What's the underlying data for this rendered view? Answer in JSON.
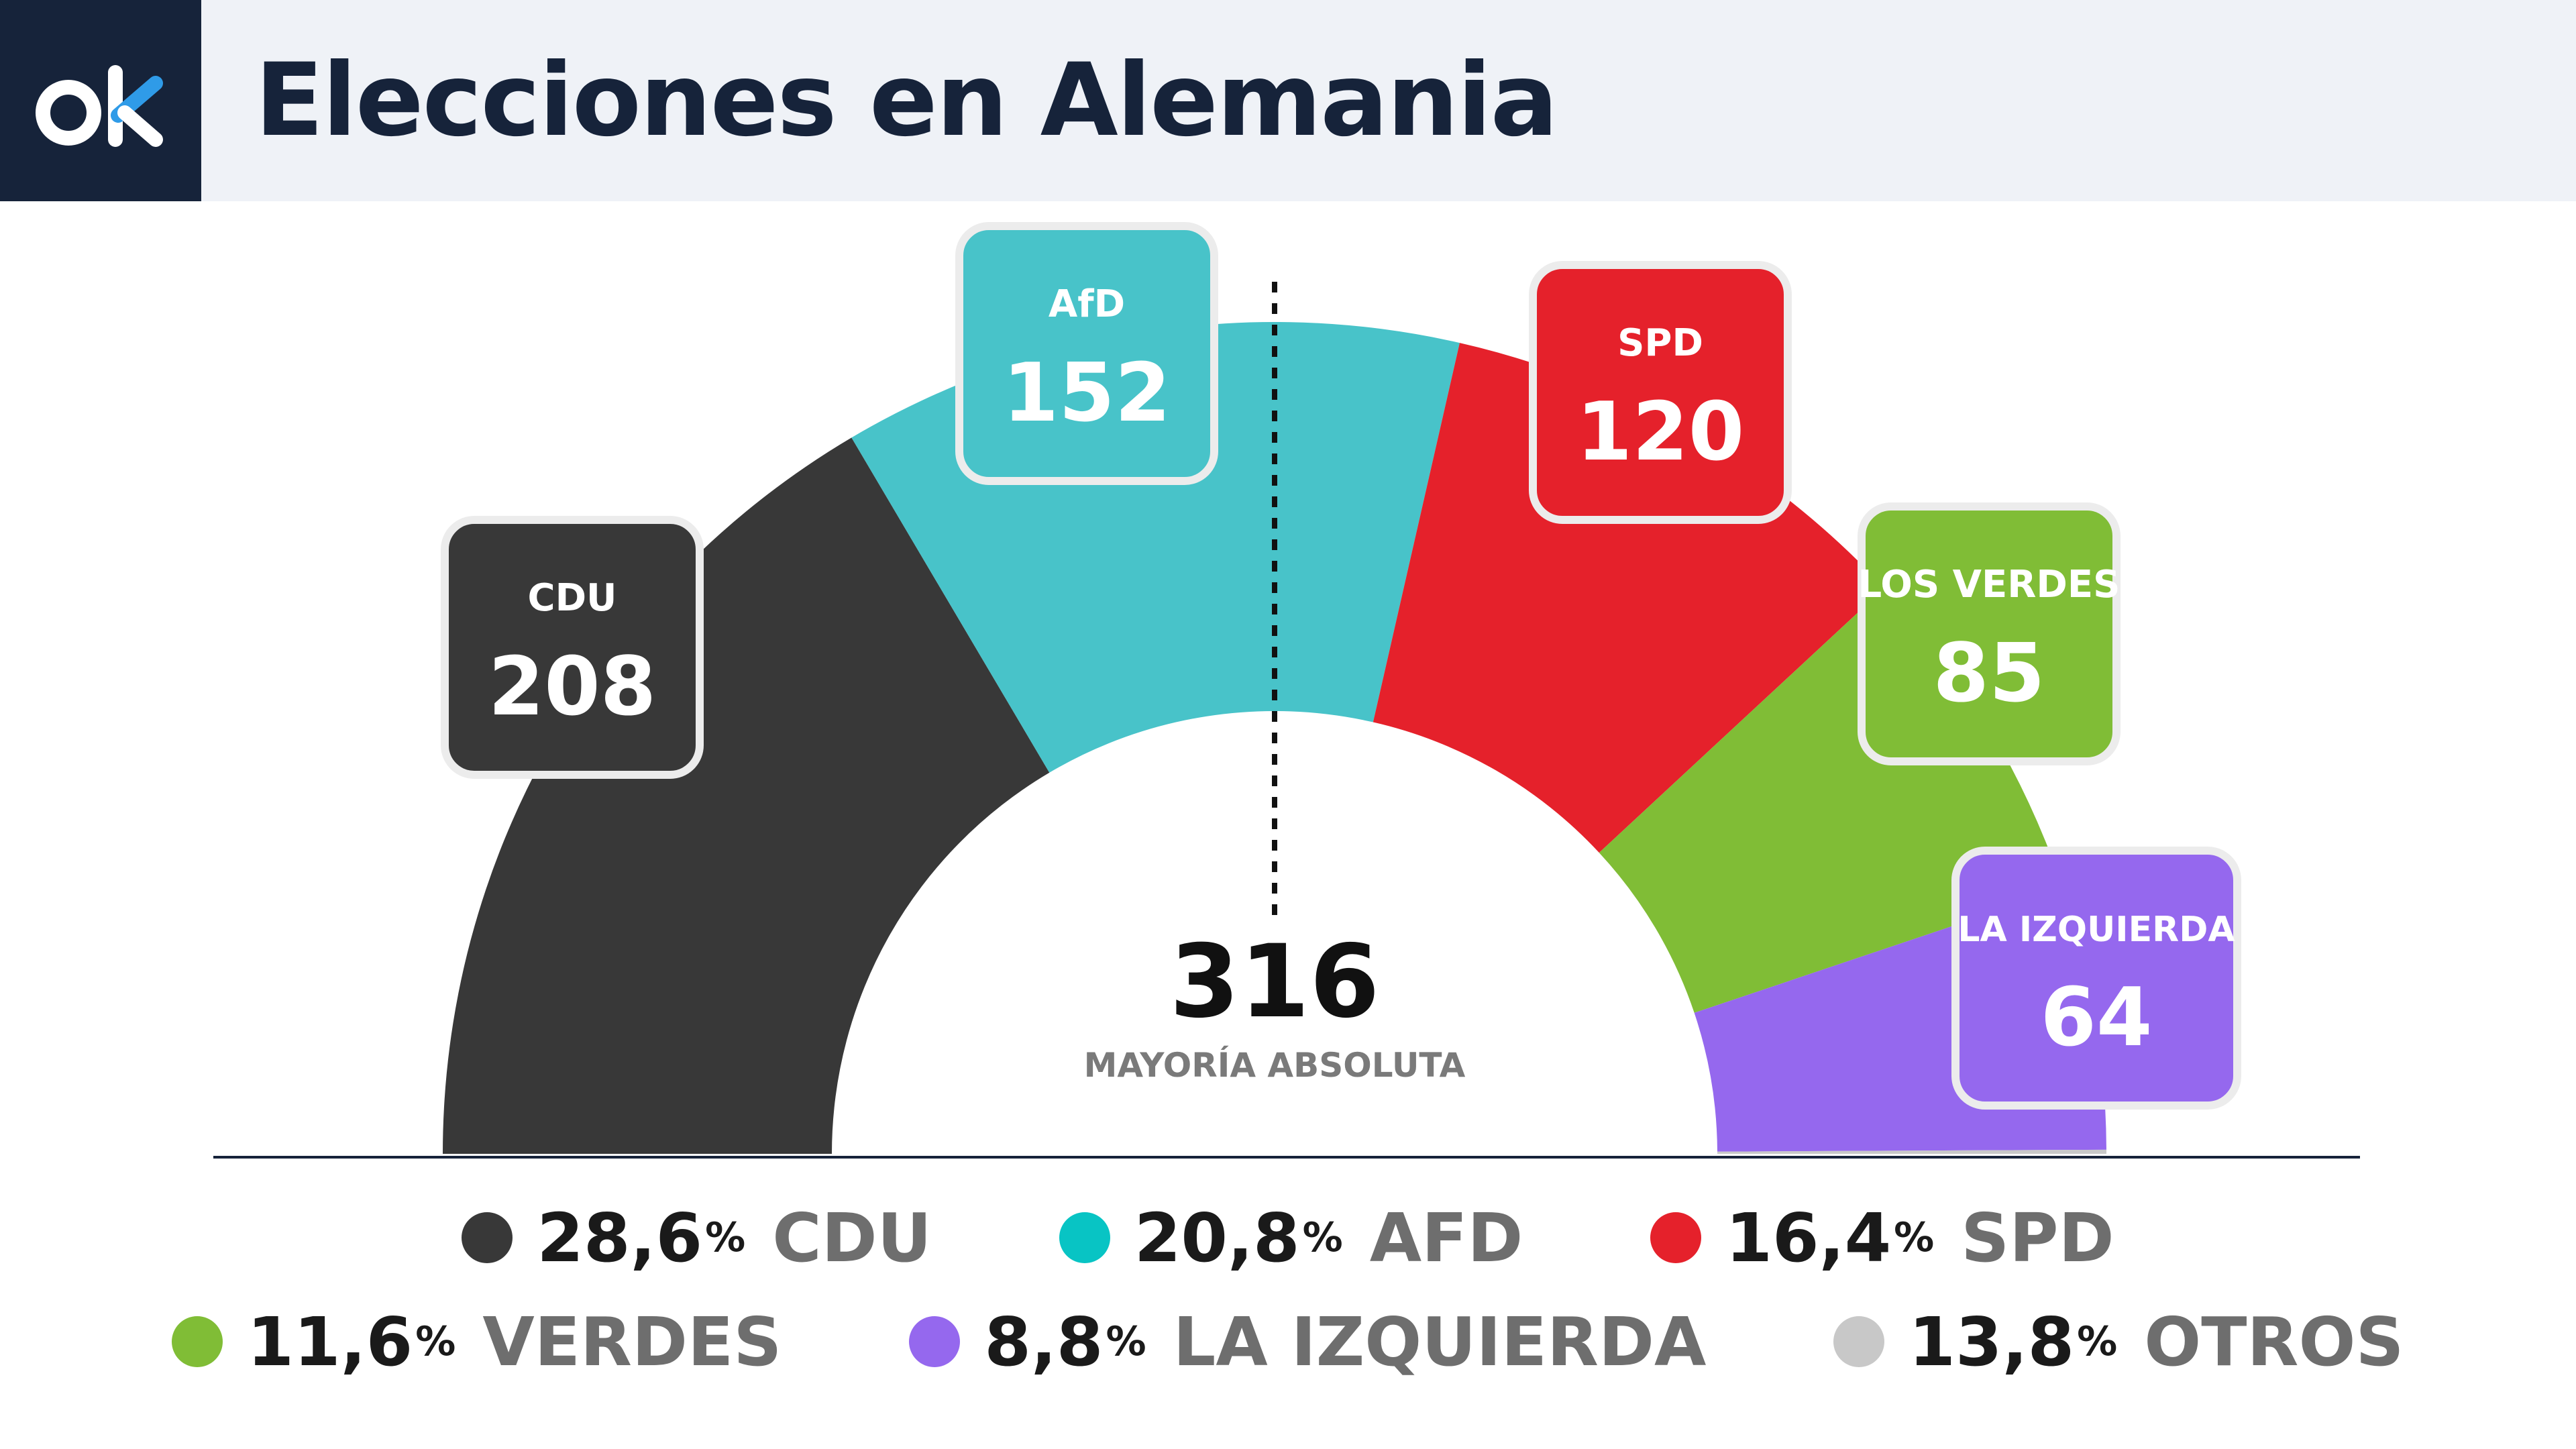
{
  "header": {
    "title": "Elecciones en Alemania",
    "logo_text": "ok"
  },
  "colors": {
    "cdu": "#383838",
    "afd": "#48c3c9",
    "spd": "#e5212b",
    "verdes": "#80bd36",
    "izquierda": "#9568ee",
    "otros": "#c8c8c8",
    "navy": "#16233a",
    "logo_accent": "#2f9be8",
    "legend_afd": "#08c4c4"
  },
  "chart_data": {
    "type": "parliament-semicircle",
    "seats": [
      {
        "party": "CDU",
        "value": 208,
        "color": "#383838"
      },
      {
        "party": "AfD",
        "value": 152,
        "color": "#48c3c9"
      },
      {
        "party": "SPD",
        "value": 120,
        "color": "#e5212b"
      },
      {
        "party": "LOS VERDES",
        "value": 85,
        "color": "#80bd36"
      },
      {
        "party": "LA IZQUIERDA",
        "value": 64,
        "color": "#9568ee"
      }
    ],
    "majority": {
      "value": "316",
      "label": "MAYORÍA ABSOLUTA"
    },
    "legend": [
      {
        "pct": "28,6",
        "sign": "%",
        "name": "CDU",
        "color": "#383838"
      },
      {
        "pct": "20,8",
        "sign": "%",
        "name": "AFD",
        "color": "#08c4c4"
      },
      {
        "pct": "16,4",
        "sign": "%",
        "name": "SPD",
        "color": "#e5212b"
      },
      {
        "pct": "11,6",
        "sign": "%",
        "name": "VERDES",
        "color": "#80bd36"
      },
      {
        "pct": "8,8",
        "sign": "%",
        "name": "LA IZQUIERDA",
        "color": "#9568ee"
      },
      {
        "pct": "13,8",
        "sign": "%",
        "name": "OTROS",
        "color": "#c8c8c8"
      }
    ]
  }
}
